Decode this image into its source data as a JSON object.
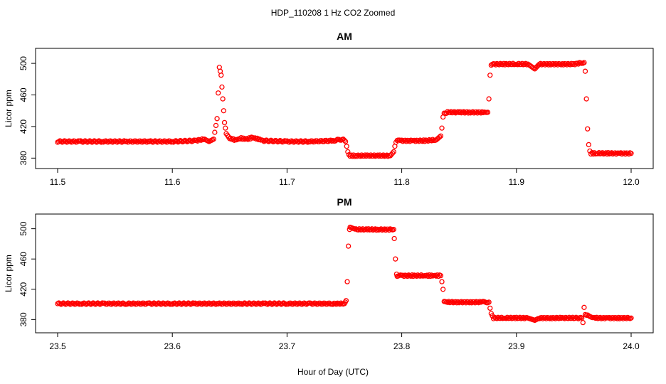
{
  "figure": {
    "title": "HDP_110208  1 Hz CO2 Zoomed",
    "xlabel": "Hour of Day (UTC)"
  },
  "chart_data": [
    {
      "type": "scatter",
      "title": "AM",
      "xlabel": "Hour of Day (UTC)",
      "ylabel": "Licor ppm",
      "xlim": [
        11.5,
        12.0
      ],
      "ylim": [
        374,
        510
      ],
      "xticks": [
        "11.5",
        "11.6",
        "11.7",
        "11.8",
        "11.9",
        "12.0"
      ],
      "xtick_values": [
        11.5,
        11.6,
        11.7,
        11.8,
        11.9,
        12.0
      ],
      "yticks": [
        "380",
        "420",
        "460",
        "500"
      ],
      "ytick_values": [
        380,
        420,
        460,
        500
      ],
      "marker": "open-circle",
      "color": "#ff0000",
      "grid": false,
      "series": [
        {
          "x": [
            11.5,
            11.52,
            11.54,
            11.56,
            11.58,
            11.6,
            11.62,
            11.628,
            11.632,
            11.636,
            11.639,
            11.641,
            11.6425,
            11.644,
            11.6455,
            11.647,
            11.65,
            11.655,
            11.66,
            11.665,
            11.67,
            11.675,
            11.68,
            11.7,
            11.72,
            11.74,
            11.749,
            11.751,
            11.752,
            11.753,
            11.754,
            11.755,
            11.76,
            11.77,
            11.78,
            11.79,
            11.793,
            11.794,
            11.795,
            11.796,
            11.8,
            11.81,
            11.82,
            11.83,
            11.834,
            11.835,
            11.836,
            11.837,
            11.84,
            11.85,
            11.86,
            11.87,
            11.875,
            11.876,
            11.877,
            11.878,
            11.879,
            11.88,
            11.89,
            11.9,
            11.91,
            11.916,
            11.92,
            11.93,
            11.94,
            11.95,
            11.958,
            11.959,
            11.96,
            11.961,
            11.962,
            11.963,
            11.964,
            11.965,
            11.97,
            11.98,
            11.99,
            12.0
          ],
          "y": [
            401,
            401,
            401,
            401,
            401,
            401,
            402,
            404,
            401,
            404,
            430,
            495,
            485,
            455,
            425,
            411,
            405,
            403,
            405,
            404,
            406,
            404,
            402,
            401,
            401,
            402,
            404,
            401,
            395,
            388,
            384,
            383,
            383,
            383,
            383,
            383,
            388,
            395,
            400,
            402,
            402,
            402,
            402,
            403,
            408,
            418,
            432,
            437,
            438,
            438,
            438,
            438,
            438,
            455,
            485,
            498,
            499,
            499,
            499,
            499,
            499,
            493,
            499,
            499,
            499,
            499,
            501,
            501,
            490,
            455,
            417,
            397,
            389,
            386,
            386,
            386,
            386,
            386
          ]
        }
      ]
    },
    {
      "type": "scatter",
      "title": "PM",
      "xlabel": "Hour of Day (UTC)",
      "ylabel": "Licor ppm",
      "xlim": [
        23.5,
        24.0
      ],
      "ylim": [
        370,
        510
      ],
      "xticks": [
        "23.5",
        "23.6",
        "23.7",
        "23.8",
        "23.9",
        "24.0"
      ],
      "xtick_values": [
        23.5,
        23.6,
        23.7,
        23.8,
        23.9,
        24.0
      ],
      "yticks": [
        "380",
        "420",
        "460",
        "500"
      ],
      "ytick_values": [
        380,
        420,
        460,
        500
      ],
      "marker": "open-circle",
      "color": "#ff0000",
      "grid": false,
      "series": [
        {
          "x": [
            23.5,
            23.52,
            23.54,
            23.56,
            23.58,
            23.6,
            23.62,
            23.64,
            23.66,
            23.68,
            23.7,
            23.72,
            23.74,
            23.75,
            23.7515,
            23.7525,
            23.7535,
            23.7545,
            23.755,
            23.76,
            23.77,
            23.78,
            23.79,
            23.793,
            23.7935,
            23.7945,
            23.7955,
            23.796,
            23.8,
            23.81,
            23.82,
            23.834,
            23.835,
            23.836,
            23.837,
            23.84,
            23.85,
            23.86,
            23.87,
            23.876,
            23.877,
            23.878,
            23.88,
            23.89,
            23.9,
            23.91,
            23.916,
            23.92,
            23.93,
            23.94,
            23.95,
            23.957,
            23.958,
            23.959,
            23.96,
            23.962,
            23.965,
            23.97,
            23.98,
            23.99,
            24.0
          ],
          "y": [
            401,
            401,
            401,
            401,
            401,
            401,
            401,
            401,
            401,
            401,
            401,
            401,
            401,
            401,
            405,
            430,
            477,
            499,
            502,
            499,
            499,
            499,
            499,
            499,
            487,
            460,
            440,
            438,
            438,
            438,
            438,
            438,
            430,
            420,
            403,
            403,
            403,
            403,
            403,
            403,
            395,
            388,
            382,
            382,
            382,
            382,
            379,
            382,
            382,
            382,
            382,
            382,
            376,
            396,
            387,
            386,
            383,
            382,
            382,
            382,
            382
          ]
        }
      ]
    }
  ]
}
